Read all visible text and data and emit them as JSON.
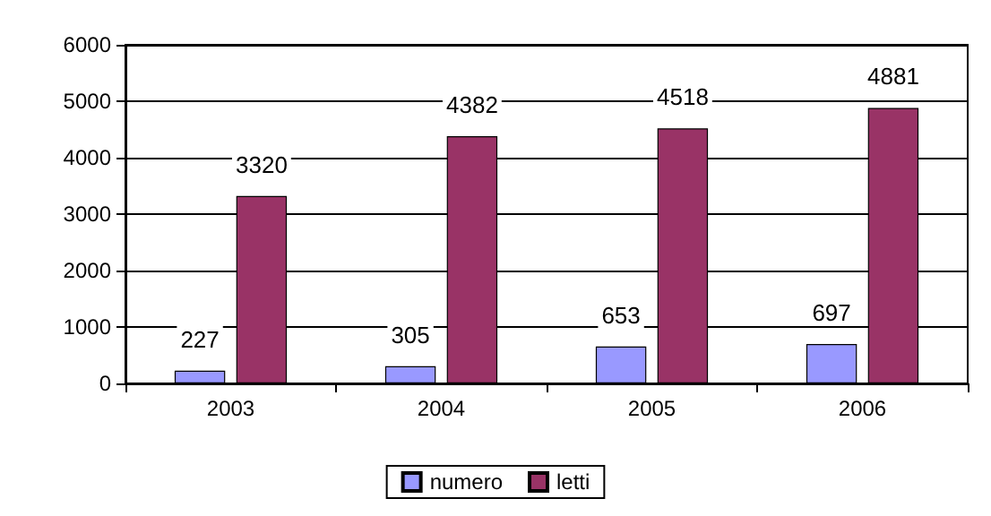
{
  "chart_data": {
    "type": "bar",
    "categories": [
      "2003",
      "2004",
      "2005",
      "2006"
    ],
    "series": [
      {
        "name": "numero",
        "color": "#9999ff",
        "values": [
          227,
          305,
          653,
          697
        ]
      },
      {
        "name": "letti",
        "color": "#993366",
        "values": [
          3320,
          4382,
          4518,
          4881
        ]
      }
    ],
    "ylim": [
      0,
      6000
    ],
    "yticks": [
      0,
      1000,
      2000,
      3000,
      4000,
      5000,
      6000
    ],
    "grid": "y",
    "legend": "bottom",
    "data_labels": true
  }
}
